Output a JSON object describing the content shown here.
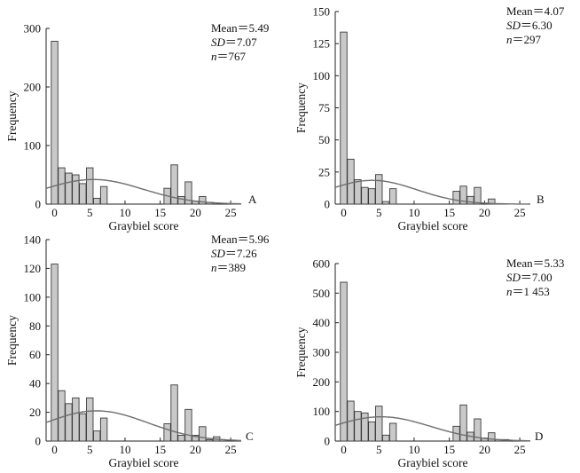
{
  "chart_data": [
    {
      "panel": "A",
      "type": "bar",
      "xlabel": "Graybiel score",
      "ylabel": "Frequency",
      "xlim": [
        -1.2,
        26.5
      ],
      "ylim": [
        0,
        300
      ],
      "xticks": [
        0,
        5,
        10,
        15,
        20,
        25
      ],
      "yticks": [
        0,
        100,
        200,
        300
      ],
      "bins": [
        0,
        1,
        2,
        3,
        4,
        5,
        6,
        7,
        16,
        17,
        18,
        19,
        20,
        21,
        22
      ],
      "values": [
        278,
        62,
        53,
        50,
        35,
        62,
        10,
        30,
        27,
        67,
        13,
        38,
        5,
        13,
        3
      ],
      "curve": {
        "type": "normal",
        "mean": 5.49,
        "sd": 7.07,
        "peak": 42
      },
      "stats": {
        "mean_label": "Mean",
        "mean_value": "5.49",
        "sd_label": "SD",
        "sd_value": "7.07",
        "n_label": "n",
        "n_value": "767"
      }
    },
    {
      "panel": "B",
      "type": "bar",
      "xlabel": "Graybiel score",
      "ylabel": "Frequency",
      "xlim": [
        -1.2,
        26.5
      ],
      "ylim": [
        0,
        150
      ],
      "xticks": [
        0,
        5,
        10,
        15,
        20,
        25
      ],
      "yticks": [
        0,
        25,
        50,
        75,
        100,
        125,
        150
      ],
      "bins": [
        0,
        1,
        2,
        3,
        4,
        5,
        6,
        7,
        16,
        17,
        18,
        19,
        21
      ],
      "values": [
        134,
        35,
        19,
        13,
        12,
        23,
        2,
        12,
        10,
        14,
        6,
        13,
        4
      ],
      "curve": {
        "type": "normal",
        "mean": 4.07,
        "sd": 6.3,
        "peak": 18.5
      },
      "stats": {
        "mean_label": "Mean",
        "mean_value": "4.07",
        "sd_label": "SD",
        "sd_value": "6.30",
        "n_label": "n",
        "n_value": "297"
      }
    },
    {
      "panel": "C",
      "type": "bar",
      "xlabel": "Graybiel score",
      "ylabel": "Frequency",
      "xlim": [
        -1.2,
        26.5
      ],
      "ylim": [
        0,
        140
      ],
      "xticks": [
        0,
        5,
        10,
        15,
        20,
        25
      ],
      "yticks": [
        0,
        20,
        40,
        60,
        80,
        100,
        120,
        140
      ],
      "bins": [
        0,
        1,
        2,
        3,
        4,
        5,
        6,
        7,
        16,
        17,
        18,
        19,
        20,
        21,
        22,
        23
      ],
      "values": [
        123,
        35,
        26,
        30,
        19,
        30,
        7,
        16,
        12,
        39,
        4,
        22,
        4,
        10,
        1,
        3
      ],
      "curve": {
        "type": "normal",
        "mean": 5.96,
        "sd": 7.26,
        "peak": 21
      },
      "stats": {
        "mean_label": "Mean",
        "mean_value": "5.96",
        "sd_label": "SD",
        "sd_value": "7.26",
        "n_label": "n",
        "n_value": "389"
      }
    },
    {
      "panel": "D",
      "type": "bar",
      "xlabel": "Graybiel score",
      "ylabel": "Frequency",
      "xlim": [
        -1.2,
        26.5
      ],
      "ylim": [
        0,
        600
      ],
      "xticks": [
        0,
        5,
        10,
        15,
        20,
        25
      ],
      "yticks": [
        0,
        100,
        200,
        300,
        400,
        500,
        600
      ],
      "bins": [
        0,
        1,
        2,
        3,
        4,
        5,
        6,
        7,
        16,
        17,
        18,
        19,
        20,
        21,
        22,
        23
      ],
      "values": [
        537,
        135,
        100,
        95,
        65,
        118,
        20,
        60,
        50,
        122,
        30,
        75,
        10,
        28,
        5,
        5
      ],
      "curve": {
        "type": "normal",
        "mean": 5.33,
        "sd": 7.0,
        "peak": 82
      },
      "stats": {
        "mean_label": "Mean",
        "mean_value": "5.33",
        "sd_label": "SD",
        "sd_value": "7.00",
        "n_label": "n",
        "n_value": "1 453"
      }
    }
  ],
  "style": {
    "bar_fill": "#c9c9c9",
    "bar_stroke": "#3a3a3a",
    "curve_color": "#6e6e6e",
    "axis_color": "#222222"
  }
}
